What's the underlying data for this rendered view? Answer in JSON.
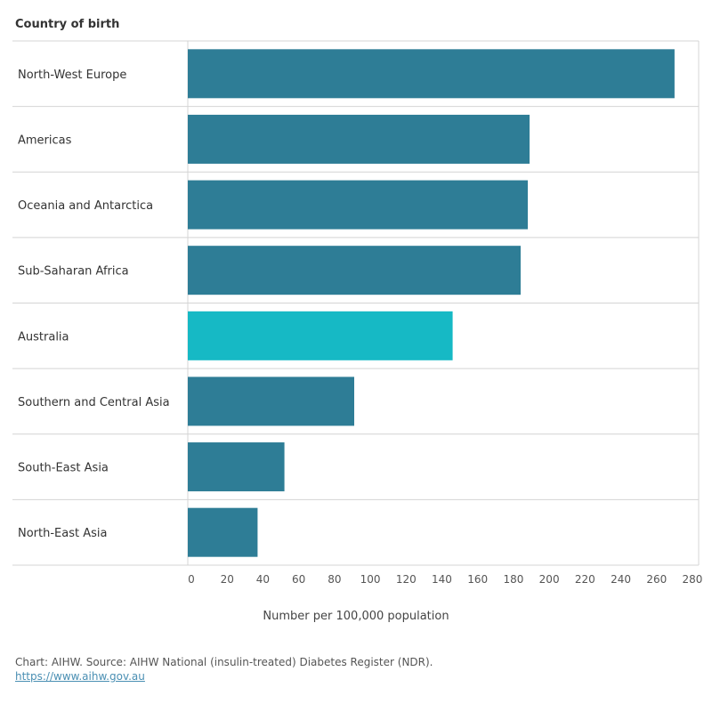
{
  "chart_data": {
    "type": "bar",
    "orientation": "horizontal",
    "row_header": "Country of birth",
    "xlabel": "Number per 100,000 population",
    "ylabel": "",
    "xlim": [
      0,
      285
    ],
    "ticks": [
      0,
      20,
      40,
      60,
      80,
      100,
      120,
      140,
      160,
      180,
      200,
      220,
      240,
      260,
      280
    ],
    "categories": [
      "North-West Europe",
      "Americas",
      "Oceania and Antarctica",
      "Sub-Saharan Africa",
      "Australia",
      "Southern and Central Asia",
      "South-East Asia",
      "North-East Asia"
    ],
    "values": [
      272,
      191,
      190,
      186,
      148,
      93,
      54,
      39
    ],
    "highlight": "Australia",
    "grid": false,
    "colors": {
      "default": "#2e7d96",
      "highlight": "#16b9c5",
      "divider": "#d4d4d4"
    }
  },
  "footer": {
    "source": "Chart: AIHW. Source: AIHW National (insulin-treated) Diabetes Register (NDR).",
    "link": "https://www.aihw.gov.au"
  }
}
